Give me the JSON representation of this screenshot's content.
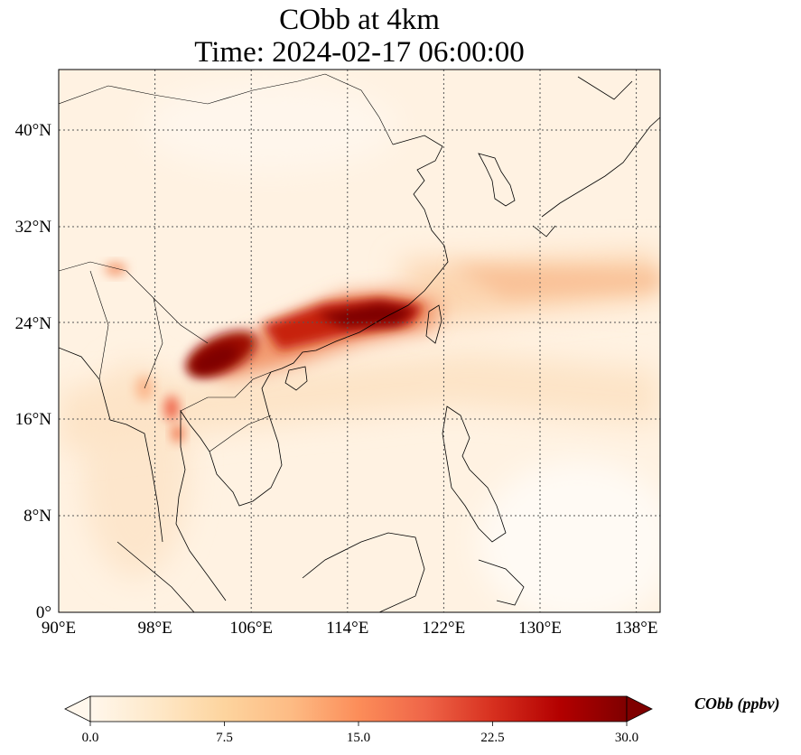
{
  "title": {
    "line1": "CObb at 4km",
    "line2": "Time: 2024-02-17 06:00:00"
  },
  "map": {
    "extent": {
      "lon_min": 90,
      "lon_max": 140,
      "lat_min": 0,
      "lat_max": 45
    },
    "lon_ticks": [
      {
        "value": 90,
        "label": "90°E"
      },
      {
        "value": 98,
        "label": "98°E"
      },
      {
        "value": 106,
        "label": "106°E"
      },
      {
        "value": 114,
        "label": "114°E"
      },
      {
        "value": 122,
        "label": "122°E"
      },
      {
        "value": 130,
        "label": "130°E"
      },
      {
        "value": 138,
        "label": "138°E"
      }
    ],
    "lat_ticks": [
      {
        "value": 0,
        "label": "0°"
      },
      {
        "value": 8,
        "label": "8°N"
      },
      {
        "value": 16,
        "label": "16°N"
      },
      {
        "value": 24,
        "label": "24°N"
      },
      {
        "value": 32,
        "label": "32°N"
      },
      {
        "value": 40,
        "label": "40°N"
      }
    ],
    "gridlines": true,
    "background_color": "#fff2e2"
  },
  "colorbar": {
    "label": "CObb (ppbv)",
    "min": 0,
    "max": 30,
    "extend": "both",
    "ticks": [
      "0.0",
      "7.5",
      "15.0",
      "22.5",
      "30.0"
    ],
    "colormap": "OrRd",
    "colors": [
      "#fff7ec",
      "#fee8c8",
      "#fdd49e",
      "#fdbb84",
      "#fc8d59",
      "#ef6548",
      "#d7301f",
      "#b30000",
      "#7f0000"
    ]
  }
}
